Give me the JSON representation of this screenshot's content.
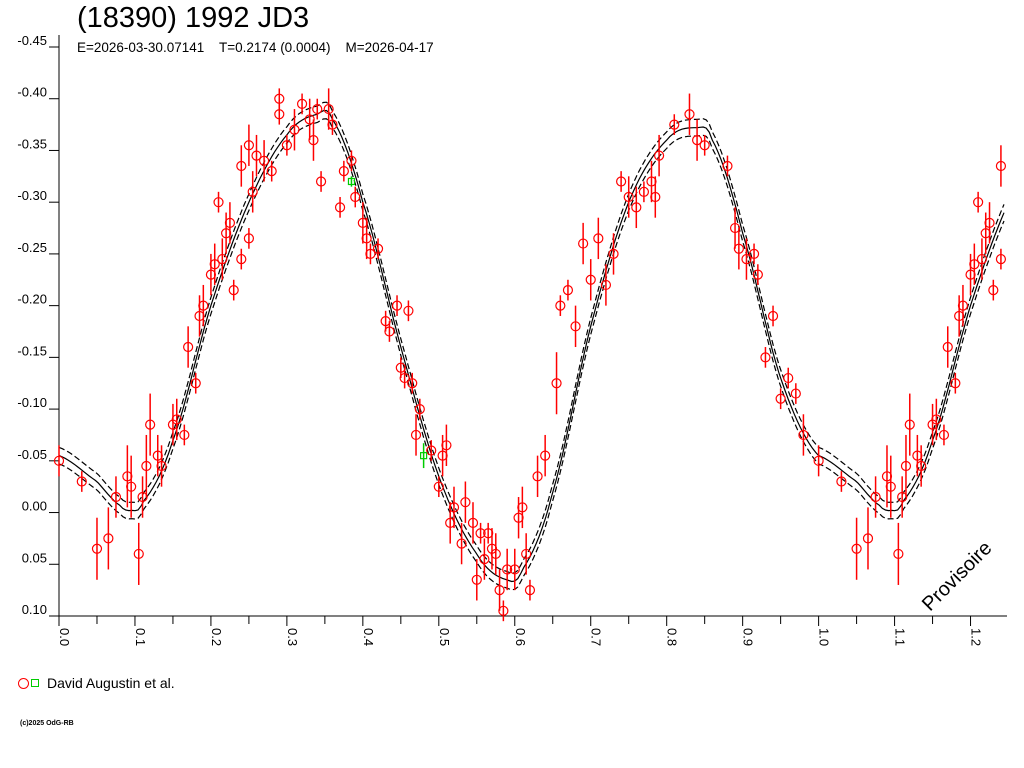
{
  "chart_data": {
    "type": "scatter",
    "title": "(18390) 1992 JD3",
    "subtitle": {
      "epoch": "E=2026-03-30.07141",
      "period": "T=0.2174 (0.0004)",
      "modified": "M=2026-04-17"
    },
    "xlabel": "",
    "ylabel": "",
    "xlim": [
      0.0,
      1.248
    ],
    "ylim": [
      -0.45,
      0.1
    ],
    "y_inverted": true,
    "x_ticks": [
      "0.0",
      "0.1",
      "0.2",
      "0.3",
      "0.4",
      "0.5",
      "0.6",
      "0.7",
      "0.8",
      "0.9",
      "1.0",
      "1.1",
      "1.2"
    ],
    "y_ticks": [
      "-0.45",
      "-0.40",
      "-0.35",
      "-0.30",
      "-0.25",
      "-0.20",
      "-0.15",
      "-0.10",
      "-0.05",
      "0.00",
      "0.05",
      "0.10"
    ],
    "watermark": "Provisoire",
    "legend": [
      {
        "label": "David Augustin et al.",
        "colors": [
          "#ff0000",
          "#00cc00"
        ]
      }
    ],
    "repeat_phase_below": 0.25,
    "series": [
      {
        "name": "David Augustin et al.",
        "marker": "circle",
        "color": "#ff0000",
        "points": [
          [
            0.0,
            -0.05,
            0.015
          ],
          [
            0.03,
            -0.03,
            0.01
          ],
          [
            0.05,
            0.035,
            0.03
          ],
          [
            0.065,
            0.025,
            0.03
          ],
          [
            0.075,
            -0.015,
            0.02
          ],
          [
            0.09,
            -0.035,
            0.03
          ],
          [
            0.095,
            -0.025,
            0.03
          ],
          [
            0.105,
            0.04,
            0.03
          ],
          [
            0.11,
            -0.015,
            0.02
          ],
          [
            0.115,
            -0.045,
            0.03
          ],
          [
            0.12,
            -0.085,
            0.03
          ],
          [
            0.13,
            -0.055,
            0.02
          ],
          [
            0.135,
            -0.045,
            0.02
          ],
          [
            0.15,
            -0.085,
            0.02
          ],
          [
            0.155,
            -0.09,
            0.02
          ],
          [
            0.165,
            -0.075,
            0.01
          ],
          [
            0.17,
            -0.16,
            0.02
          ],
          [
            0.18,
            -0.125,
            0.01
          ],
          [
            0.185,
            -0.19,
            0.02
          ],
          [
            0.19,
            -0.2,
            0.02
          ],
          [
            0.2,
            -0.23,
            0.02
          ],
          [
            0.205,
            -0.24,
            0.02
          ],
          [
            0.21,
            -0.3,
            0.01
          ],
          [
            0.215,
            -0.245,
            0.02
          ],
          [
            0.22,
            -0.27,
            0.02
          ],
          [
            0.225,
            -0.28,
            0.02
          ],
          [
            0.23,
            -0.215,
            0.01
          ],
          [
            0.24,
            -0.335,
            0.02
          ],
          [
            0.24,
            -0.245,
            0.01
          ],
          [
            0.25,
            -0.355,
            0.02
          ],
          [
            0.25,
            -0.265,
            0.01
          ],
          [
            0.255,
            -0.31,
            0.02
          ],
          [
            0.26,
            -0.345,
            0.02
          ],
          [
            0.27,
            -0.34,
            0.02
          ],
          [
            0.28,
            -0.33,
            0.01
          ],
          [
            0.29,
            -0.4,
            0.01
          ],
          [
            0.29,
            -0.385,
            0.01
          ],
          [
            0.3,
            -0.355,
            0.01
          ],
          [
            0.31,
            -0.37,
            0.02
          ],
          [
            0.32,
            -0.395,
            0.01
          ],
          [
            0.33,
            -0.38,
            0.02
          ],
          [
            0.335,
            -0.36,
            0.02
          ],
          [
            0.34,
            -0.39,
            0.01
          ],
          [
            0.345,
            -0.32,
            0.01
          ],
          [
            0.355,
            -0.39,
            0.02
          ],
          [
            0.36,
            -0.375,
            0.01
          ],
          [
            0.37,
            -0.295,
            0.01
          ],
          [
            0.375,
            -0.33,
            0.01
          ],
          [
            0.385,
            -0.34,
            0.01
          ],
          [
            0.39,
            -0.305,
            0.01
          ],
          [
            0.4,
            -0.28,
            0.02
          ],
          [
            0.405,
            -0.265,
            0.02
          ],
          [
            0.41,
            -0.25,
            0.01
          ],
          [
            0.42,
            -0.255,
            0.01
          ],
          [
            0.43,
            -0.185,
            0.01
          ],
          [
            0.435,
            -0.175,
            0.01
          ],
          [
            0.445,
            -0.2,
            0.01
          ],
          [
            0.45,
            -0.14,
            0.01
          ],
          [
            0.455,
            -0.13,
            0.01
          ],
          [
            0.46,
            -0.195,
            0.01
          ],
          [
            0.465,
            -0.125,
            0.01
          ],
          [
            0.47,
            -0.075,
            0.02
          ],
          [
            0.475,
            -0.1,
            0.01
          ],
          [
            0.49,
            -0.06,
            0.01
          ],
          [
            0.5,
            -0.025,
            0.01
          ],
          [
            0.505,
            -0.055,
            0.02
          ],
          [
            0.51,
            -0.065,
            0.02
          ],
          [
            0.515,
            0.01,
            0.02
          ],
          [
            0.52,
            -0.005,
            0.02
          ],
          [
            0.53,
            0.03,
            0.02
          ],
          [
            0.535,
            -0.01,
            0.02
          ],
          [
            0.545,
            0.01,
            0.02
          ],
          [
            0.55,
            0.065,
            0.02
          ],
          [
            0.555,
            0.02,
            0.01
          ],
          [
            0.56,
            0.045,
            0.02
          ],
          [
            0.565,
            0.02,
            0.01
          ],
          [
            0.57,
            0.035,
            0.02
          ],
          [
            0.575,
            0.04,
            0.02
          ],
          [
            0.58,
            0.075,
            0.02
          ],
          [
            0.585,
            0.095,
            0.01
          ],
          [
            0.59,
            0.055,
            0.02
          ],
          [
            0.6,
            0.055,
            0.02
          ],
          [
            0.605,
            0.005,
            0.02
          ],
          [
            0.61,
            -0.005,
            0.02
          ],
          [
            0.615,
            0.04,
            0.02
          ],
          [
            0.62,
            0.075,
            0.01
          ],
          [
            0.63,
            -0.035,
            0.02
          ],
          [
            0.64,
            -0.055,
            0.02
          ],
          [
            0.655,
            -0.125,
            0.03
          ],
          [
            0.66,
            -0.2,
            0.01
          ],
          [
            0.67,
            -0.215,
            0.01
          ],
          [
            0.68,
            -0.18,
            0.02
          ],
          [
            0.69,
            -0.26,
            0.02
          ],
          [
            0.7,
            -0.225,
            0.02
          ],
          [
            0.71,
            -0.265,
            0.02
          ],
          [
            0.72,
            -0.22,
            0.02
          ],
          [
            0.73,
            -0.25,
            0.02
          ],
          [
            0.74,
            -0.32,
            0.01
          ],
          [
            0.75,
            -0.305,
            0.02
          ],
          [
            0.76,
            -0.295,
            0.02
          ],
          [
            0.77,
            -0.31,
            0.01
          ],
          [
            0.78,
            -0.32,
            0.02
          ],
          [
            0.785,
            -0.305,
            0.02
          ],
          [
            0.79,
            -0.345,
            0.02
          ],
          [
            0.81,
            -0.375,
            0.01
          ],
          [
            0.83,
            -0.385,
            0.02
          ],
          [
            0.84,
            -0.36,
            0.02
          ],
          [
            0.85,
            -0.355,
            0.01
          ],
          [
            0.88,
            -0.335,
            0.01
          ],
          [
            0.89,
            -0.275,
            0.02
          ],
          [
            0.895,
            -0.255,
            0.02
          ],
          [
            0.905,
            -0.245,
            0.02
          ],
          [
            0.915,
            -0.25,
            0.01
          ],
          [
            0.92,
            -0.23,
            0.01
          ],
          [
            0.93,
            -0.15,
            0.01
          ],
          [
            0.94,
            -0.19,
            0.01
          ],
          [
            0.95,
            -0.11,
            0.01
          ],
          [
            0.96,
            -0.13,
            0.01
          ],
          [
            0.97,
            -0.115,
            0.01
          ],
          [
            0.98,
            -0.075,
            0.02
          ]
        ]
      },
      {
        "name": "David Augustin et al. (2)",
        "marker": "square",
        "color": "#00cc00",
        "points": [
          [
            0.385,
            -0.32,
            0.005
          ],
          [
            0.48,
            -0.055,
            0.012
          ]
        ]
      }
    ],
    "fit_curve": {
      "color": "#000000",
      "envelope": 0.008,
      "points": [
        [
          0.0,
          -0.055
        ],
        [
          0.05,
          -0.03
        ],
        [
          0.08,
          -0.007
        ],
        [
          0.095,
          -0.002
        ],
        [
          0.11,
          -0.01
        ],
        [
          0.15,
          -0.07
        ],
        [
          0.2,
          -0.2
        ],
        [
          0.25,
          -0.3
        ],
        [
          0.3,
          -0.365
        ],
        [
          0.34,
          -0.385
        ],
        [
          0.36,
          -0.38
        ],
        [
          0.4,
          -0.3
        ],
        [
          0.45,
          -0.16
        ],
        [
          0.5,
          -0.035
        ],
        [
          0.55,
          0.04
        ],
        [
          0.59,
          0.065
        ],
        [
          0.61,
          0.055
        ],
        [
          0.65,
          -0.02
        ],
        [
          0.7,
          -0.18
        ],
        [
          0.75,
          -0.3
        ],
        [
          0.8,
          -0.36
        ],
        [
          0.84,
          -0.372
        ],
        [
          0.86,
          -0.36
        ],
        [
          0.9,
          -0.27
        ],
        [
          0.95,
          -0.13
        ],
        [
          1.0,
          -0.055
        ]
      ]
    }
  },
  "legend_label": "David Augustin et al.",
  "copyright": "(c)2025 OdG-RB"
}
